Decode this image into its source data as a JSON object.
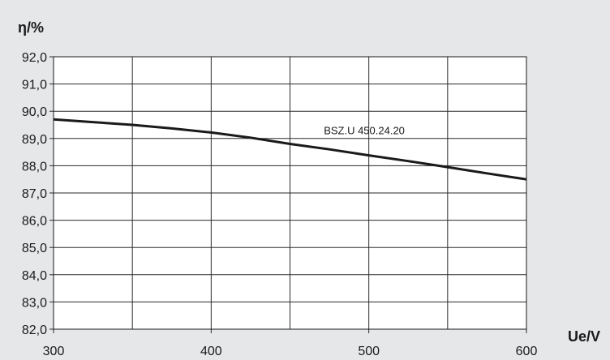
{
  "chart_data": {
    "type": "line",
    "ylabel": "η/%",
    "xlabel": "Ue/V",
    "xlim": [
      300,
      600
    ],
    "ylim": [
      82.0,
      92.0
    ],
    "xticks": [
      300,
      400,
      500,
      600
    ],
    "x_tick_labels": [
      "300",
      "400",
      "500",
      "600"
    ],
    "yticks": [
      82.0,
      83.0,
      84.0,
      85.0,
      86.0,
      87.0,
      88.0,
      89.0,
      90.0,
      91.0,
      92.0
    ],
    "y_tick_labels": [
      "82,0",
      "83,0",
      "84,0",
      "85,0",
      "86,0",
      "87,0",
      "88,0",
      "89,0",
      "90,0",
      "91,0",
      "92,0"
    ],
    "x_gridlines": [
      350,
      400,
      450,
      500,
      550
    ],
    "grid": true,
    "series": [
      {
        "name": "BSZ.U 450.24.20",
        "label_at": [
          420,
          89.3
        ],
        "x": [
          300,
          325,
          350,
          375,
          400,
          425,
          450,
          475,
          500,
          525,
          550,
          575,
          600
        ],
        "y": [
          89.7,
          89.6,
          89.5,
          89.37,
          89.22,
          89.03,
          88.8,
          88.6,
          88.38,
          88.17,
          87.95,
          87.72,
          87.5
        ]
      }
    ],
    "colors": {
      "background": "#e6e7e9",
      "plot_area": "#ffffff",
      "line": "#1a1a1a",
      "grid": "#2a2a2a"
    }
  }
}
